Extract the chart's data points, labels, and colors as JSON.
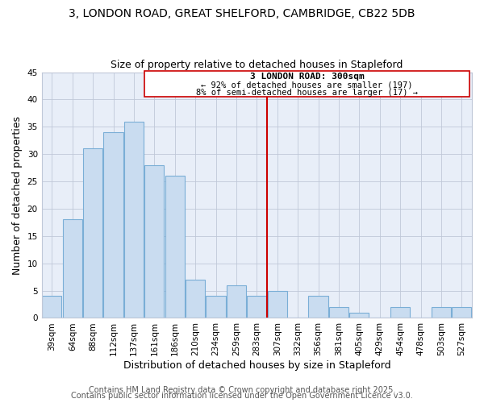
{
  "title": "3, LONDON ROAD, GREAT SHELFORD, CAMBRIDGE, CB22 5DB",
  "subtitle": "Size of property relative to detached houses in Stapleford",
  "xlabel": "Distribution of detached houses by size in Stapleford",
  "ylabel": "Number of detached properties",
  "categories": [
    "39sqm",
    "64sqm",
    "88sqm",
    "112sqm",
    "137sqm",
    "161sqm",
    "186sqm",
    "210sqm",
    "234sqm",
    "259sqm",
    "283sqm",
    "307sqm",
    "332sqm",
    "356sqm",
    "381sqm",
    "405sqm",
    "429sqm",
    "454sqm",
    "478sqm",
    "503sqm",
    "527sqm"
  ],
  "values": [
    4,
    18,
    31,
    34,
    36,
    28,
    26,
    7,
    4,
    6,
    4,
    5,
    0,
    4,
    2,
    1,
    0,
    2,
    0,
    2,
    2
  ],
  "bar_color": "#c9dcf0",
  "bar_edge_color": "#7aaed6",
  "vline_x_index": 11,
  "vline_color": "#cc0000",
  "annotation_title": "3 LONDON ROAD: 300sqm",
  "annotation_line1": "← 92% of detached houses are smaller (197)",
  "annotation_line2": "8% of semi-detached houses are larger (17) →",
  "annotation_border_color": "#cc0000",
  "ylim": [
    0,
    45
  ],
  "yticks": [
    0,
    5,
    10,
    15,
    20,
    25,
    30,
    35,
    40,
    45
  ],
  "footer1": "Contains HM Land Registry data © Crown copyright and database right 2025.",
  "footer2": "Contains public sector information licensed under the Open Government Licence v3.0.",
  "bg_color": "#ffffff",
  "plot_bg_color": "#e8eef8",
  "grid_color": "#c0c8d8",
  "title_fontsize": 10,
  "subtitle_fontsize": 9,
  "axis_label_fontsize": 9,
  "tick_fontsize": 7.5,
  "footer_fontsize": 7
}
